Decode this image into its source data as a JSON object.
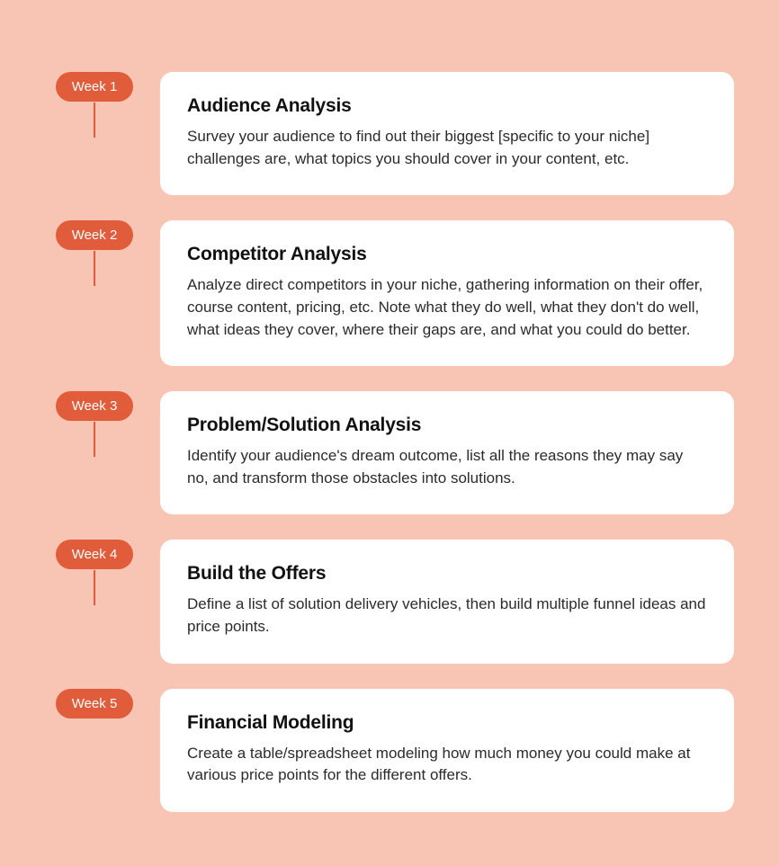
{
  "type": "timeline-infographic",
  "background_color": "#f8c5b4",
  "badge_color": "#e15c3a",
  "badge_text_color": "#ffffff",
  "card_bg_color": "#ffffff",
  "card_border_radius": 14,
  "connector_color": "#e15c3a",
  "title_color": "#111111",
  "desc_color": "#2b2b2b",
  "title_fontsize": 21,
  "desc_fontsize": 17,
  "badge_fontsize": 15,
  "steps": [
    {
      "badge": "Week 1",
      "title": "Audience Analysis",
      "description": "Survey your audience to find out their biggest [specific to your niche] challenges are, what topics you should cover in your content, etc."
    },
    {
      "badge": "Week 2",
      "title": "Competitor Analysis",
      "description": "Analyze direct competitors in your niche, gathering information on their offer, course content, pricing, etc. Note what they do well, what they don't do well, what ideas they cover, where their gaps are, and what you could do better."
    },
    {
      "badge": "Week 3",
      "title": "Problem/Solution Analysis",
      "description": "Identify your audience's dream outcome, list all the reasons they may say no, and transform those obstacles into solutions."
    },
    {
      "badge": "Week 4",
      "title": "Build the Offers",
      "description": "Define a list of solution delivery vehicles, then build multiple funnel ideas and price points."
    },
    {
      "badge": "Week 5",
      "title": "Financial Modeling",
      "description": "Create a table/spreadsheet modeling how much money you could make at various price points for the different offers."
    }
  ]
}
